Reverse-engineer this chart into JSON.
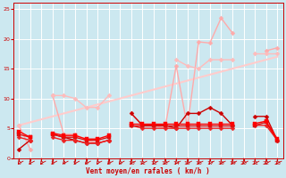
{
  "bg_color": "#cce8f0",
  "grid_color": "#ffffff",
  "xlabel": "Vent moyen/en rafales ( km/h )",
  "xlim": [
    -0.5,
    23.5
  ],
  "ylim": [
    0,
    26
  ],
  "yticks": [
    0,
    5,
    10,
    15,
    20,
    25
  ],
  "xticks": [
    0,
    1,
    2,
    3,
    4,
    5,
    6,
    7,
    8,
    9,
    10,
    11,
    12,
    13,
    14,
    15,
    16,
    17,
    18,
    19,
    20,
    21,
    22,
    23
  ],
  "series": [
    {
      "y": [
        5.5,
        1.5,
        null,
        10.5,
        4.0,
        4.0,
        3.0,
        2.5,
        3.0,
        null,
        7.5,
        5.5,
        5.5,
        5.0,
        15.5,
        5.2,
        19.5,
        19.3,
        23.5,
        21.0,
        null,
        null,
        18.0,
        18.5
      ],
      "color": "#ffaaaa",
      "lw": 1.0,
      "marker": "D",
      "ms": 2.5,
      "zorder": 3
    },
    {
      "y": [
        5.5,
        null,
        null,
        10.5,
        10.5,
        10.0,
        8.5,
        8.5,
        10.5,
        null,
        null,
        null,
        null,
        null,
        16.5,
        15.5,
        15.0,
        16.5,
        16.5,
        16.5,
        null,
        17.5,
        17.5,
        17.5
      ],
      "color": "#ffbbbb",
      "lw": 1.0,
      "marker": "D",
      "ms": 2.5,
      "zorder": 3
    },
    {
      "y": [
        5.5,
        6.0,
        6.5,
        7.0,
        7.5,
        8.0,
        8.5,
        9.0,
        9.5,
        10.0,
        10.5,
        11.0,
        11.5,
        12.0,
        12.5,
        13.0,
        13.5,
        14.0,
        14.5,
        15.0,
        15.5,
        16.0,
        16.5,
        17.0
      ],
      "color": "#ffcccc",
      "lw": 1.5,
      "marker": null,
      "ms": 0,
      "zorder": 2
    },
    {
      "y": [
        1.5,
        3.0,
        null,
        4.0,
        3.5,
        3.0,
        2.5,
        2.5,
        3.0,
        null,
        7.5,
        5.5,
        5.5,
        5.5,
        5.0,
        7.5,
        7.5,
        8.5,
        7.5,
        5.5,
        null,
        7.0,
        7.0,
        3.0
      ],
      "color": "#cc0000",
      "lw": 1.0,
      "marker": "D",
      "ms": 2.5,
      "zorder": 4
    },
    {
      "y": [
        3.5,
        3.0,
        null,
        3.5,
        3.0,
        3.0,
        2.5,
        2.5,
        3.0,
        null,
        5.5,
        5.0,
        5.0,
        5.0,
        5.0,
        5.0,
        5.0,
        5.0,
        5.0,
        5.0,
        null,
        5.5,
        5.5,
        3.0
      ],
      "color": "#ee2222",
      "lw": 1.0,
      "marker": "D",
      "ms": 2.5,
      "zorder": 4
    },
    {
      "y": [
        4.0,
        3.5,
        null,
        4.0,
        3.5,
        3.5,
        3.0,
        3.0,
        3.5,
        null,
        5.5,
        5.5,
        5.5,
        5.5,
        5.5,
        5.5,
        5.5,
        5.5,
        5.5,
        5.5,
        null,
        5.5,
        6.0,
        3.0
      ],
      "color": "#dd1111",
      "lw": 1.0,
      "marker": "s",
      "ms": 2.5,
      "zorder": 4
    },
    {
      "y": [
        4.5,
        3.5,
        null,
        4.2,
        3.8,
        3.8,
        3.2,
        3.2,
        3.8,
        null,
        5.8,
        5.8,
        5.8,
        5.8,
        5.8,
        5.8,
        5.8,
        5.8,
        5.8,
        5.8,
        null,
        5.8,
        6.2,
        3.2
      ],
      "color": "#ff0000",
      "lw": 1.0,
      "marker": "s",
      "ms": 2.5,
      "zorder": 4
    }
  ]
}
